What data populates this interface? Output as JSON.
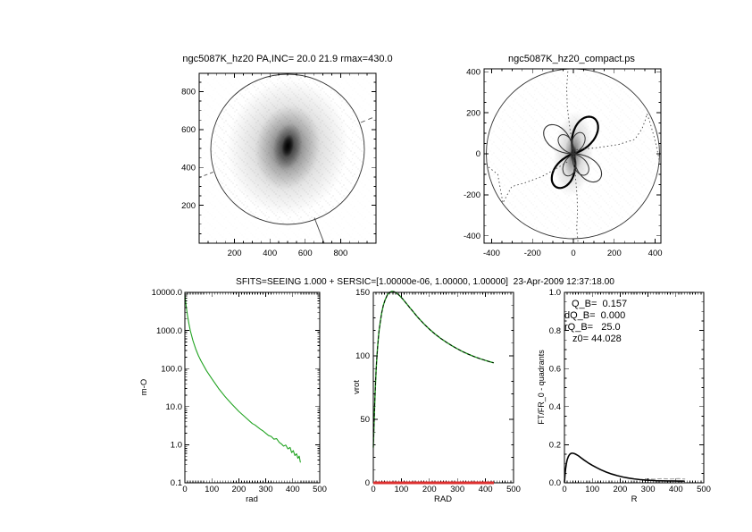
{
  "figure": {
    "background": "#ffffff",
    "accent_green": "#21a321",
    "accent_red": "#dd2f2f"
  },
  "top_left": {
    "title": "ngc5087K_hz20 PA,INC= 20.0 21.9 rmax=430.0",
    "x_tick_labels": [
      "200",
      "400",
      "600",
      "800"
    ],
    "y_tick_labels": [
      "200",
      "400",
      "600",
      "800"
    ]
  },
  "top_right": {
    "title": "ngc5087K_hz20_compact.ps",
    "x_tick_labels": [
      "-400",
      "-200",
      "0",
      "200",
      "400"
    ],
    "y_tick_labels": [
      "-400",
      "-200",
      "0",
      "200",
      "400"
    ]
  },
  "bottom_title": "SFITS=SEEING 1.000 + SERSIC=[1.00000e-06, 1.00000, 1.00000]  23-Apr-2009 12:37:18.00",
  "profile": {
    "x_label": "rad",
    "y_label": "m-O",
    "x_tick_labels": [
      "0",
      "100",
      "200",
      "300",
      "400",
      "500"
    ],
    "y_tick_labels": [
      "10000.0",
      "1000.0",
      "100.0",
      "10.0",
      "1.0",
      "0.1"
    ]
  },
  "vrot": {
    "x_label": "RAD",
    "y_label": "vrot",
    "x_tick_labels": [
      "0",
      "100",
      "200",
      "300",
      "400",
      "500"
    ],
    "y_tick_labels": [
      "0",
      "50",
      "100",
      "150"
    ]
  },
  "ftfr": {
    "x_label": "R",
    "y_label": "FT/FR_0 - quadrants",
    "x_tick_labels": [
      "0",
      "100",
      "200",
      "300",
      "400",
      "500"
    ],
    "y_tick_labels": [
      "0.0",
      "0.2",
      "0.4",
      "0.6",
      "0.8",
      "1.0"
    ],
    "annotation_lines": {
      "l1": "Q_B=  0.157",
      "l2": "dQ_B=  0.000",
      "l3": "rQ_B=   25.0",
      "l4": "z0= 44.028"
    }
  },
  "chart_data": [
    {
      "id": "galaxy_image",
      "type": "heatmap",
      "title": "ngc5087K_hz20 PA,INC= 20.0 21.9 rmax=430.0",
      "xlim": [
        0,
        1000
      ],
      "ylim": [
        0,
        897
      ],
      "x_ticks": [
        200,
        400,
        600,
        800
      ],
      "y_ticks": [
        200,
        400,
        600,
        800
      ],
      "ellipse": {
        "cx": 500,
        "cy": 520,
        "rmax": 430,
        "pa_deg": 20,
        "inc_deg": 21.9
      },
      "description": "Grayscale galaxy image with bright elongated core near (500,520) and overlaid ellipse of radius rmax=430"
    },
    {
      "id": "compact",
      "type": "line",
      "title": "ngc5087K_hz20_compact.ps",
      "xlim": [
        -437,
        428
      ],
      "ylim": [
        -436,
        414
      ],
      "x_ticks": [
        -400,
        -200,
        0,
        200,
        400
      ],
      "y_ticks": [
        -400,
        -200,
        0,
        200,
        400
      ],
      "circle_radius": 420,
      "petals": [
        {
          "angle_deg": 61,
          "r": 201,
          "w": 2.2
        },
        {
          "angle_deg": 243,
          "r": 183,
          "w": 2.2
        },
        {
          "angle_deg": 136,
          "r": 187,
          "w": 1.1
        },
        {
          "angle_deg": 315,
          "r": 179,
          "w": 1.1
        },
        {
          "angle_deg": 68,
          "r": 110,
          "w": 1.0
        },
        {
          "angle_deg": 126,
          "r": 110,
          "w": 1.0
        },
        {
          "angle_deg": 253,
          "r": 112,
          "w": 1.0
        },
        {
          "angle_deg": 302,
          "r": 119,
          "w": 1.0
        }
      ],
      "dotted_paths": [
        [
          [
            -26,
            420
          ],
          [
            -33,
            320
          ],
          [
            -30,
            230
          ],
          [
            -18,
            130
          ],
          [
            -6,
            40
          ],
          [
            0,
            5
          ]
        ],
        [
          [
            2,
            -10
          ],
          [
            10,
            -110
          ],
          [
            18,
            -210
          ],
          [
            20,
            -290
          ],
          [
            16,
            -360
          ],
          [
            22,
            -428
          ]
        ],
        [
          [
            -415,
            -65
          ],
          [
            -370,
            -100
          ],
          [
            -345,
            -240
          ],
          [
            -302,
            -160
          ],
          [
            -232,
            -140
          ],
          [
            -152,
            -110
          ],
          [
            -80,
            -70
          ],
          [
            -22,
            -35
          ]
        ],
        [
          [
            15,
            20
          ],
          [
            120,
            30
          ],
          [
            220,
            45
          ],
          [
            300,
            70
          ],
          [
            335,
            120
          ],
          [
            352,
            165
          ],
          [
            360,
            195
          ],
          [
            376,
            148
          ],
          [
            396,
            78
          ],
          [
            410,
            18
          ],
          [
            420,
            -32
          ]
        ]
      ]
    },
    {
      "id": "profile",
      "type": "line",
      "xlabel": "rad",
      "ylabel": "m-O",
      "xlim": [
        0,
        500
      ],
      "ylim": [
        0.1,
        10000
      ],
      "ylog": true,
      "color": "#21a321",
      "x": [
        0,
        5,
        10,
        15,
        20,
        30,
        40,
        50,
        60,
        80,
        100,
        125,
        150,
        175,
        200,
        225,
        250,
        260,
        270,
        280,
        290,
        300,
        310,
        320,
        330,
        340,
        350,
        358,
        366,
        374,
        382,
        390,
        396,
        402,
        408,
        414,
        419,
        424,
        428
      ],
      "y": [
        9000,
        4200,
        2400,
        1500,
        1000,
        540,
        330,
        220,
        158,
        88,
        54,
        30,
        18,
        11.5,
        7.5,
        5.2,
        3.6,
        3.3,
        2.9,
        2.55,
        2.3,
        2.0,
        1.75,
        1.65,
        1.4,
        1.45,
        1.15,
        1.05,
        0.92,
        0.98,
        0.78,
        0.85,
        0.62,
        0.7,
        0.52,
        0.58,
        0.44,
        0.5,
        0.35
      ]
    },
    {
      "id": "vrot",
      "type": "line",
      "xlabel": "RAD",
      "ylabel": "vrot",
      "xlim": [
        0,
        500
      ],
      "ylim": [
        0,
        150
      ],
      "series": [
        {
          "name": "vrot",
          "color": "#21a321",
          "style": "solid"
        },
        {
          "name": "sersic_fit",
          "color": "#000000",
          "style": "dashed"
        }
      ],
      "x": [
        0,
        2,
        4,
        6,
        8,
        10,
        13,
        16,
        20,
        25,
        30,
        36,
        42,
        50,
        58,
        66,
        74,
        82,
        92,
        104,
        116,
        130,
        145,
        160,
        180,
        200,
        220,
        240,
        260,
        280,
        300,
        320,
        340,
        360,
        380,
        400,
        415,
        428
      ],
      "y": [
        28,
        42,
        56,
        68,
        79,
        89,
        100,
        109,
        119,
        127,
        134,
        140,
        144,
        148,
        150,
        150.8,
        150.5,
        149.6,
        147.8,
        145,
        141.8,
        138,
        134,
        130,
        125.3,
        121,
        117.2,
        113.8,
        110.8,
        108,
        105.5,
        103.2,
        101.2,
        99.4,
        97.8,
        96.4,
        95.4,
        94.6
      ],
      "baseline": {
        "color": "#dd2f2f",
        "y": 0,
        "x_from": 0,
        "x_to": 430
      }
    },
    {
      "id": "ftfr",
      "type": "line",
      "xlabel": "R",
      "ylabel": "FT/FR_0 - quadrants",
      "xlim": [
        0,
        500
      ],
      "ylim": [
        0,
        1
      ],
      "color": "#000000",
      "x": [
        0,
        2,
        4,
        7,
        10,
        14,
        18,
        22,
        26,
        30,
        36,
        42,
        50,
        60,
        70,
        85,
        100,
        115,
        130,
        150,
        170,
        190,
        210,
        230,
        250,
        270,
        290,
        310,
        330,
        350,
        370,
        390,
        405,
        420,
        430
      ],
      "y": [
        0.004,
        0.04,
        0.072,
        0.102,
        0.122,
        0.138,
        0.148,
        0.153,
        0.1555,
        0.1555,
        0.153,
        0.149,
        0.142,
        0.131,
        0.12,
        0.105,
        0.092,
        0.08,
        0.069,
        0.0565,
        0.046,
        0.0375,
        0.0305,
        0.025,
        0.0205,
        0.017,
        0.0145,
        0.0125,
        0.011,
        0.0102,
        0.0097,
        0.0095,
        0.0092,
        0.009,
        0.0088
      ],
      "dashed_overlay": {
        "color": "#999999",
        "x": [
          290,
          320,
          350,
          380,
          410,
          432
        ],
        "y": [
          0.021,
          0.019,
          0.022,
          0.02,
          0.022,
          0.02
        ]
      },
      "annotations": [
        "Q_B=  0.157",
        "dQ_B=  0.000",
        "rQ_B=   25.0",
        "z0= 44.028"
      ]
    }
  ]
}
